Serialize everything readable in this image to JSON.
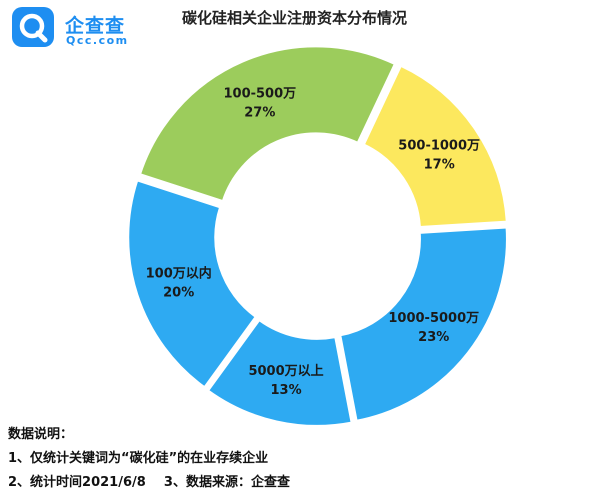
{
  "brand": {
    "name": "企查查",
    "domain": "Qcc.com",
    "color": "#1e8ef1"
  },
  "chart_data": {
    "type": "pie",
    "donut": true,
    "title": "碳化硅相关企业注册资本分布情况",
    "slices": [
      {
        "label": "100-500万",
        "percent_label": "27%",
        "value": 27,
        "color": "#9ccc5c"
      },
      {
        "label": "500-1000万",
        "percent_label": "17%",
        "value": 17,
        "color": "#fce85e"
      },
      {
        "label": "1000-5000万",
        "percent_label": "23%",
        "value": 23,
        "color": "#2eaaf2"
      },
      {
        "label": "5000万以上",
        "percent_label": "13%",
        "value": 13,
        "color": "#2eaaf2"
      },
      {
        "label": "100万以内",
        "percent_label": "20%",
        "value": 20,
        "color": "#2eaaf2"
      }
    ]
  },
  "notes": {
    "heading": "数据说明：",
    "line1": "1、仅统计关键词为“碳化硅”的在业存续企业",
    "line2": "2、统计时间2021/6/8    3、数据来源：企查查"
  }
}
